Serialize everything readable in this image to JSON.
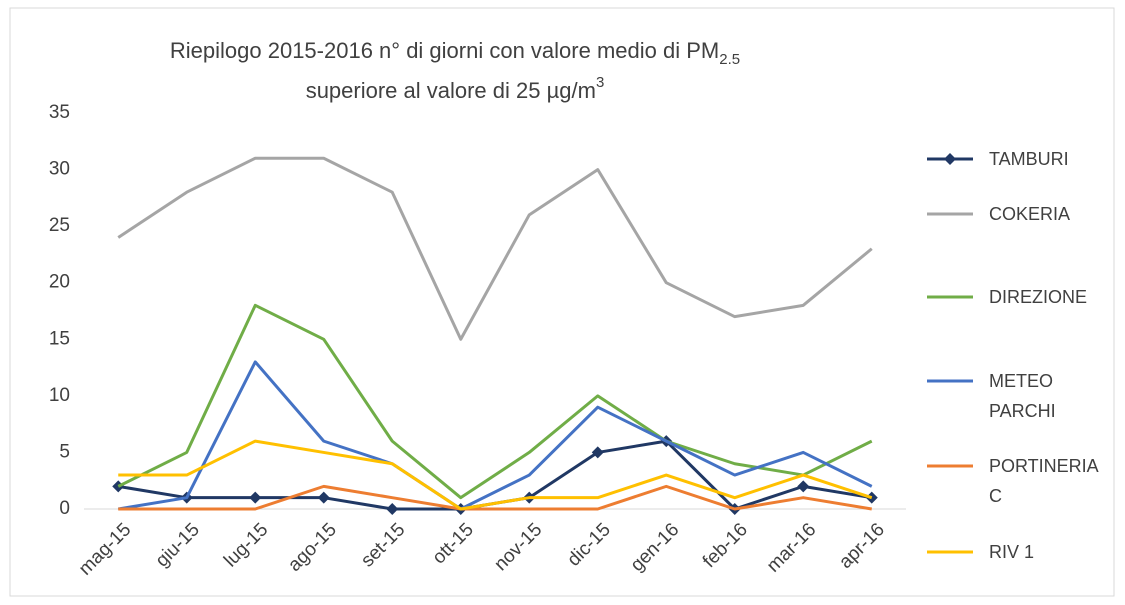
{
  "chart_data": {
    "type": "line",
    "title": {
      "line1": "Riepilogo  2015-2016 n° di giorni con valore medio di PM",
      "line1_sub": "2.5",
      "line2": "superiore al valore di 25 µg/m",
      "line2_sup": "3"
    },
    "categories": [
      "mag-15",
      "giu-15",
      "lug-15",
      "ago-15",
      "set-15",
      "ott-15",
      "nov-15",
      "dic-15",
      "gen-16",
      "feb-16",
      "mar-16",
      "apr-16"
    ],
    "series": [
      {
        "name": "TAMBURI",
        "color": "#203864",
        "marker": "diamond",
        "values": [
          2,
          1,
          1,
          1,
          0,
          0,
          1,
          5,
          6,
          0,
          2,
          1
        ]
      },
      {
        "name": "COKERIA",
        "color": "#a5a5a5",
        "values": [
          24,
          28,
          31,
          31,
          28,
          15,
          26,
          30,
          20,
          17,
          18,
          23
        ]
      },
      {
        "name": "DIREZIONE",
        "color": "#70ad47",
        "values": [
          2,
          5,
          18,
          15,
          6,
          1,
          5,
          10,
          6,
          4,
          3,
          6
        ]
      },
      {
        "name": "METEO PARCHI",
        "color": "#4472c4",
        "values": [
          0,
          1,
          13,
          6,
          4,
          0,
          3,
          9,
          6,
          3,
          5,
          2
        ]
      },
      {
        "name": "PORTINERIA C",
        "color": "#ed7d31",
        "values": [
          0,
          0,
          0,
          2,
          1,
          0,
          0,
          0,
          2,
          0,
          1,
          0
        ]
      },
      {
        "name": "RIV 1",
        "color": "#ffc000",
        "values": [
          3,
          3,
          6,
          5,
          4,
          0,
          1,
          1,
          3,
          1,
          3,
          1
        ]
      }
    ],
    "ylim": [
      0,
      35
    ],
    "yticks": [
      0,
      5,
      10,
      15,
      20,
      25,
      30,
      35
    ],
    "grid": false,
    "legend": "right"
  }
}
